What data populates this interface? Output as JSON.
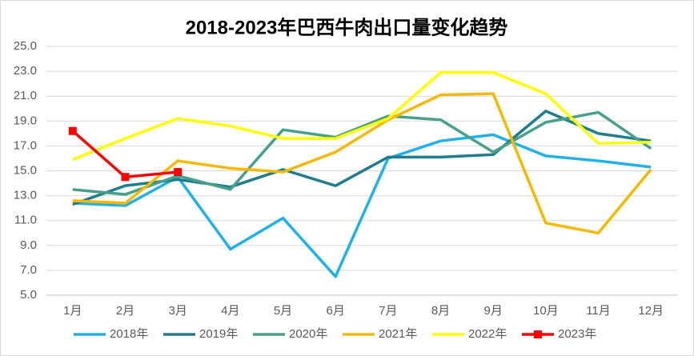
{
  "chart_data": {
    "type": "line",
    "title": "2018-2023年巴西牛肉出口量变化趋势",
    "categories": [
      "1月",
      "2月",
      "3月",
      "4月",
      "5月",
      "6月",
      "7月",
      "8月",
      "9月",
      "10月",
      "11月",
      "12月"
    ],
    "series": [
      {
        "name": "2018年",
        "color": "#1fb2ea",
        "values": [
          12.4,
          12.2,
          14.5,
          8.7,
          11.2,
          6.5,
          16.0,
          17.4,
          17.9,
          16.2,
          15.8,
          15.3
        ]
      },
      {
        "name": "2019年",
        "color": "#1f7d8e",
        "values": [
          12.3,
          13.8,
          14.3,
          13.7,
          15.1,
          13.8,
          16.1,
          16.1,
          16.3,
          19.8,
          18.0,
          17.4
        ]
      },
      {
        "name": "2020年",
        "color": "#46a18b",
        "values": [
          13.5,
          13.1,
          14.6,
          13.5,
          18.3,
          17.7,
          19.4,
          19.1,
          16.5,
          18.9,
          19.7,
          16.8
        ]
      },
      {
        "name": "2021年",
        "color": "#f6b900",
        "values": [
          12.6,
          12.4,
          15.8,
          15.2,
          14.9,
          16.5,
          19.1,
          21.1,
          21.2,
          10.8,
          10.0,
          15.1
        ]
      },
      {
        "name": "2022年",
        "color": "#ffff00",
        "values": [
          15.9,
          17.6,
          19.2,
          18.6,
          17.6,
          17.6,
          19.2,
          22.9,
          22.9,
          21.2,
          17.2,
          17.3
        ]
      },
      {
        "name": "2023年",
        "color": "#ff0000",
        "marker": "square",
        "values": [
          18.2,
          14.5,
          14.9,
          null,
          null,
          null,
          null,
          null,
          null,
          null,
          null,
          null
        ]
      }
    ],
    "ylim": [
      5,
      25
    ],
    "yticks": [
      {
        "value": 5,
        "label": "5.0"
      },
      {
        "value": 7,
        "label": "7.0"
      },
      {
        "value": 9,
        "label": "9.0"
      },
      {
        "value": 11,
        "label": "11.0"
      },
      {
        "value": 13,
        "label": "13.0"
      },
      {
        "value": 15,
        "label": "15.0"
      },
      {
        "value": 17,
        "label": "17.0"
      },
      {
        "value": 19,
        "label": "19.0"
      },
      {
        "value": 21,
        "label": "21.0"
      },
      {
        "value": 23,
        "label": "23.0"
      },
      {
        "value": 25,
        "label": "25.0"
      }
    ],
    "grid": true,
    "legend": "bottom"
  }
}
